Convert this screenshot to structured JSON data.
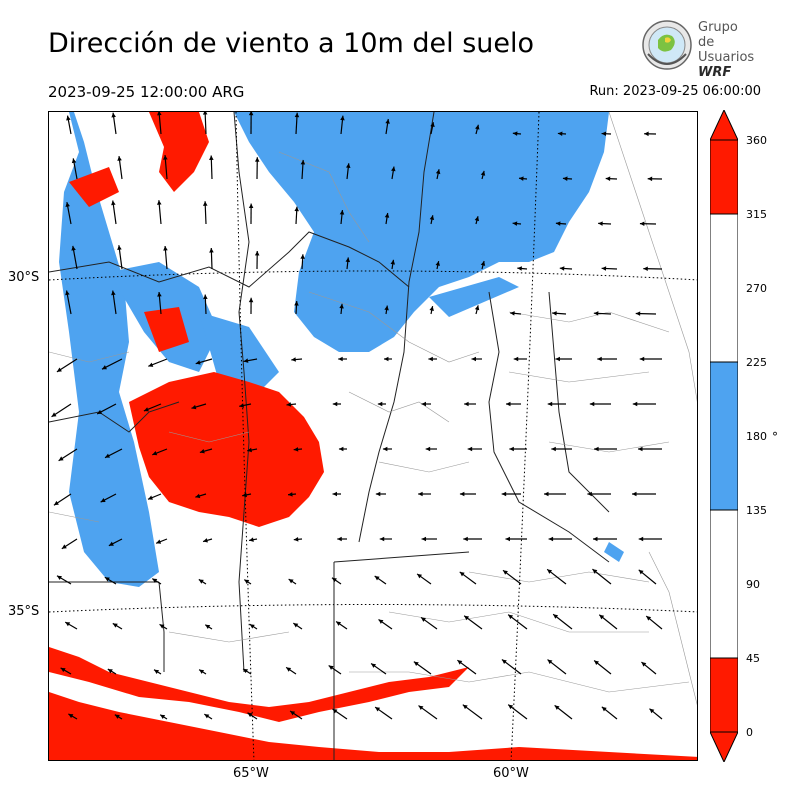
{
  "header": {
    "title": "Dirección de viento a 10m del suelo",
    "valid_time": "2023-09-25 12:00:00 ARG",
    "run_time": "Run: 2023-09-25 06:00:00"
  },
  "logo": {
    "line1": "Grupo de",
    "line2": "Usuarios",
    "line3": "WRF"
  },
  "axes": {
    "lat_labels": [
      "30°S",
      "35°S"
    ],
    "lon_labels": [
      "65°W",
      "60°W"
    ]
  },
  "colorbar": {
    "ticks": [
      "360",
      "315",
      "270",
      "225",
      "180",
      "135",
      "90",
      "45",
      "0"
    ],
    "unit": "°",
    "colors": {
      "low": "#ff1a00",
      "mid": "#ffffff",
      "south": "#4ea3f0"
    }
  }
}
